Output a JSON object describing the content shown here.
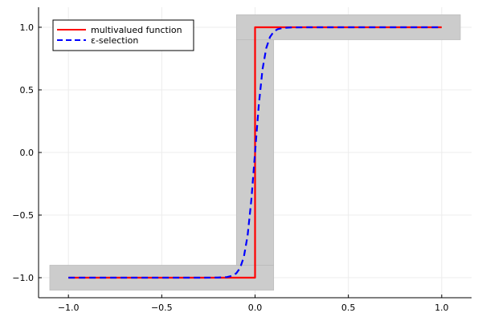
{
  "chart_data": {
    "type": "line",
    "title": "",
    "xlabel": "",
    "ylabel": "",
    "xlim": [
      -1.16,
      1.16
    ],
    "ylim": [
      -1.16,
      1.16
    ],
    "x_ticks": [
      {
        "value": -1.0,
        "label": "−1.0"
      },
      {
        "value": -0.5,
        "label": "−0.5"
      },
      {
        "value": 0.0,
        "label": "0.0"
      },
      {
        "value": 0.5,
        "label": "0.5"
      },
      {
        "value": 1.0,
        "label": "1.0"
      }
    ],
    "y_ticks": [
      {
        "value": -1.0,
        "label": "−1.0"
      },
      {
        "value": -0.5,
        "label": "−0.5"
      },
      {
        "value": 0.0,
        "label": "0.0"
      },
      {
        "value": 0.5,
        "label": "0.5"
      },
      {
        "value": 1.0,
        "label": "1.0"
      }
    ],
    "grid": true,
    "legend_position": "top-left",
    "shaded_regions": [
      {
        "x": [
          -1.1,
          0.1
        ],
        "y": [
          -1.1,
          -0.9
        ],
        "color": "#cccccc"
      },
      {
        "x": [
          -0.1,
          0.1
        ],
        "y": [
          -0.9,
          0.9
        ],
        "color": "#cccccc"
      },
      {
        "x": [
          -0.1,
          1.1
        ],
        "y": [
          0.9,
          1.1
        ],
        "color": "#cccccc"
      }
    ],
    "series": [
      {
        "name": "multivalued function",
        "color": "#ff0000",
        "style": "solid",
        "x": [
          -1.0,
          0.0,
          0.0,
          1.0
        ],
        "y": [
          -1.0,
          -1.0,
          1.0,
          1.0
        ]
      },
      {
        "name": "ε-selection",
        "color": "#0000ff",
        "style": "dashed",
        "x": [
          -1.0,
          -0.3,
          -0.2,
          -0.15,
          -0.12,
          -0.1,
          -0.08,
          -0.06,
          -0.04,
          -0.02,
          0.0,
          0.02,
          0.04,
          0.06,
          0.08,
          0.1,
          0.12,
          0.15,
          0.2,
          0.3,
          1.0
        ],
        "y": [
          -1.0,
          -1.0,
          -0.999,
          -0.995,
          -0.984,
          -0.964,
          -0.922,
          -0.834,
          -0.664,
          -0.38,
          0.0,
          0.38,
          0.664,
          0.834,
          0.922,
          0.964,
          0.984,
          0.995,
          0.999,
          1.0,
          1.0
        ]
      }
    ]
  }
}
